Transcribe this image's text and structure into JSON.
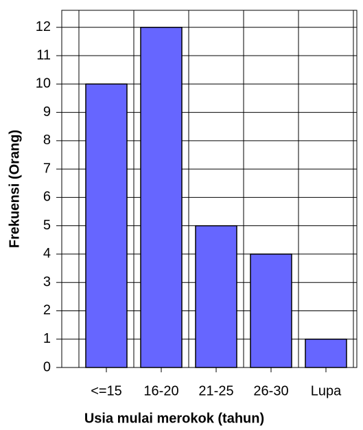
{
  "chart_data": {
    "type": "bar",
    "x_label": "Usia mulai merokok (tahun)",
    "y_label": "Frekuensi (Orang)",
    "categories": [
      "<=15",
      "16-20",
      "21-25",
      "26-30",
      "Lupa"
    ],
    "values": [
      10,
      12,
      5,
      4,
      1
    ],
    "color": "#6666ff",
    "ylim": [
      0,
      12.6
    ],
    "yticks": [
      0,
      1,
      2,
      3,
      4,
      5,
      6,
      7,
      8,
      9,
      10,
      11,
      12
    ],
    "grid": true
  }
}
